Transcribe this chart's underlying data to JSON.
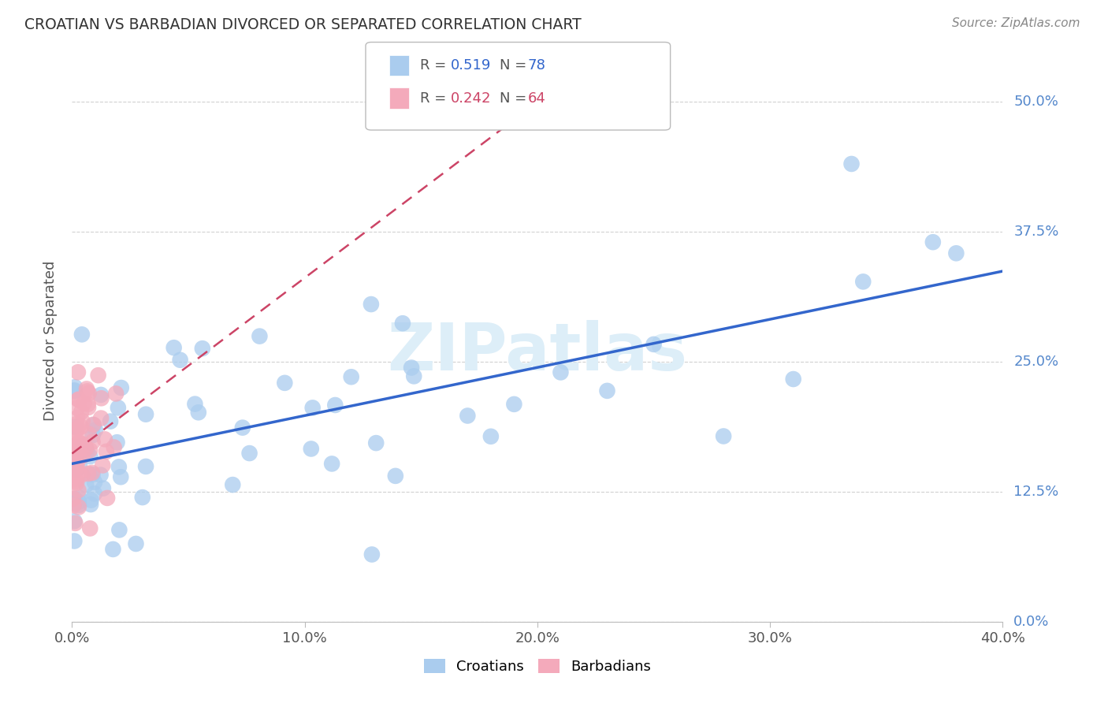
{
  "title": "CROATIAN VS BARBADIAN DIVORCED OR SEPARATED CORRELATION CHART",
  "source": "Source: ZipAtlas.com",
  "ylabel": "Divorced or Separated",
  "xlim": [
    0.0,
    0.4
  ],
  "ylim": [
    0.0,
    0.54
  ],
  "ylabel_ticks": [
    "0.0%",
    "12.5%",
    "25.0%",
    "37.5%",
    "50.0%"
  ],
  "ytick_vals": [
    0.0,
    0.125,
    0.25,
    0.375,
    0.5
  ],
  "xtick_vals": [
    0.0,
    0.1,
    0.2,
    0.3,
    0.4
  ],
  "croatian_R": 0.519,
  "croatian_N": 78,
  "barbadian_R": 0.242,
  "barbadian_N": 64,
  "croatian_color": "#aaccee",
  "barbadian_color": "#f4aabb",
  "trend_croatian_color": "#3366cc",
  "trend_barbadian_color": "#cc4466",
  "background_color": "#ffffff",
  "grid_color": "#cccccc",
  "title_color": "#333333",
  "watermark_color": "#ddeef8",
  "legend_edge_color": "#bbbbbb",
  "right_tick_color": "#5588cc",
  "source_color": "#888888"
}
